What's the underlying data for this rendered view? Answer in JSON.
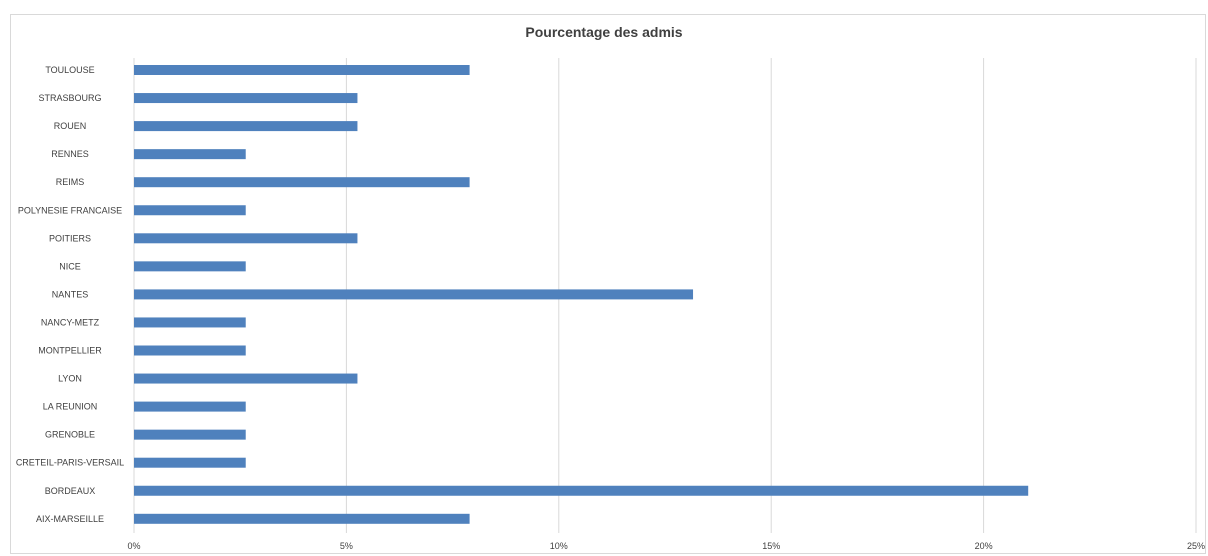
{
  "chart_data": {
    "type": "bar",
    "orientation": "horizontal",
    "title": "Pourcentage des admis",
    "categories": [
      "TOULOUSE",
      "STRASBOURG",
      "ROUEN",
      "RENNES",
      "REIMS",
      "POLYNESIE FRANCAISE",
      "POITIERS",
      "NICE",
      "NANTES",
      "NANCY-METZ",
      "MONTPELLIER",
      "LYON",
      "LA REUNION",
      "GRENOBLE",
      "CRETEIL-PARIS-VERSAIL",
      "BORDEAUX",
      "AIX-MARSEILLE"
    ],
    "values": [
      7.9,
      5.26,
      5.26,
      2.63,
      7.9,
      2.63,
      5.26,
      2.63,
      13.16,
      2.63,
      2.63,
      5.26,
      2.63,
      2.63,
      2.63,
      21.05,
      7.9
    ],
    "xlim": [
      0,
      25
    ],
    "xticks": [
      "0%",
      "5%",
      "10%",
      "15%",
      "20%",
      "25%"
    ],
    "grid": true,
    "bar_color": "#4f81bd",
    "grid_color": "#d9d9d9"
  }
}
